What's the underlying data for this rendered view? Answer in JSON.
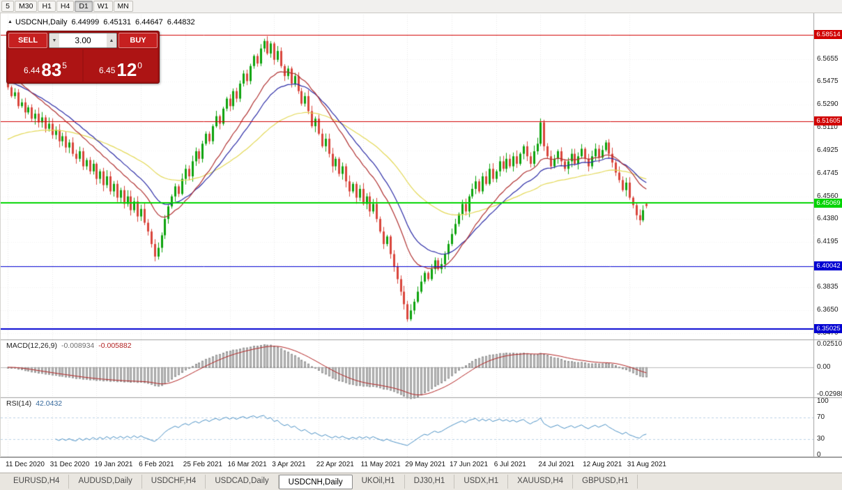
{
  "toolbar": {
    "timeframes": [
      "5",
      "M30",
      "H1",
      "H4",
      "D1",
      "W1",
      "MN"
    ],
    "active": "D1"
  },
  "chart": {
    "symbol": "USDCNH,Daily",
    "open": "6.44999",
    "high": "6.45131",
    "low": "6.44647",
    "close": "6.44832",
    "collapse_icon": "▲",
    "price_axis": {
      "ticks": [
        "6.5655",
        "6.5475",
        "6.5290",
        "6.5110",
        "6.4925",
        "6.4745",
        "6.4560",
        "6.4380",
        "6.4195",
        "6.4015",
        "6.3835",
        "6.3650",
        "6.3470"
      ],
      "max": 6.596,
      "min": 6.343
    },
    "levels": [
      {
        "label": "6.58514",
        "color": "#d10000",
        "width": 1
      },
      {
        "label": "6.51605",
        "color": "#d10000",
        "width": 1
      },
      {
        "label": "6.45069",
        "color": "#00d400",
        "width": 2
      },
      {
        "label": "6.40042",
        "color": "#0000d1",
        "width": 1
      },
      {
        "label": "6.35025",
        "color": "#0000d1",
        "width": 2
      }
    ],
    "dates": [
      {
        "label": "11 Dec 2020",
        "bar": 0
      },
      {
        "label": "31 Dec 2020",
        "bar": 13
      },
      {
        "label": "19 Jan 2021",
        "bar": 26
      },
      {
        "label": "6 Feb 2021",
        "bar": 39
      },
      {
        "label": "25 Feb 2021",
        "bar": 52
      },
      {
        "label": "16 Mar 2021",
        "bar": 65
      },
      {
        "label": "3 Apr 2021",
        "bar": 78
      },
      {
        "label": "22 Apr 2021",
        "bar": 91
      },
      {
        "label": "11 May 2021",
        "bar": 104
      },
      {
        "label": "29 May 2021",
        "bar": 117
      },
      {
        "label": "17 Jun 2021",
        "bar": 130
      },
      {
        "label": "6 Jul 2021",
        "bar": 143
      },
      {
        "label": "24 Jul 2021",
        "bar": 156
      },
      {
        "label": "12 Aug 2021",
        "bar": 169
      },
      {
        "label": "31 Aug 2021",
        "bar": 182
      }
    ],
    "chart_data": {
      "type": "candlestick",
      "first_open": 6.548,
      "closes": [
        6.543,
        6.536,
        6.539,
        6.528,
        6.531,
        6.523,
        6.527,
        6.518,
        6.522,
        6.515,
        6.519,
        6.51,
        6.514,
        6.505,
        6.509,
        6.5,
        6.504,
        6.495,
        6.499,
        6.49,
        6.486,
        6.492,
        6.48,
        6.485,
        6.476,
        6.482,
        6.47,
        6.476,
        6.465,
        6.472,
        6.46,
        6.466,
        6.455,
        6.461,
        6.45,
        6.456,
        6.445,
        6.452,
        6.44,
        6.446,
        6.435,
        6.428,
        6.418,
        6.408,
        6.415,
        6.425,
        6.438,
        6.448,
        6.456,
        6.464,
        6.458,
        6.47,
        6.478,
        6.472,
        6.484,
        6.492,
        6.486,
        6.498,
        6.506,
        6.5,
        6.512,
        6.52,
        6.514,
        6.526,
        6.534,
        6.528,
        6.54,
        6.534,
        6.546,
        6.554,
        6.548,
        6.56,
        6.568,
        6.562,
        6.574,
        6.58,
        6.57,
        6.578,
        6.565,
        6.572,
        6.56,
        6.552,
        6.558,
        6.546,
        6.552,
        6.54,
        6.53,
        6.536,
        6.524,
        6.512,
        6.518,
        6.506,
        6.496,
        6.502,
        6.49,
        6.48,
        6.486,
        6.474,
        6.48,
        6.468,
        6.46,
        6.466,
        6.455,
        6.462,
        6.45,
        6.456,
        6.444,
        6.45,
        6.438,
        6.428,
        6.418,
        6.424,
        6.41,
        6.4,
        6.39,
        6.38,
        6.37,
        6.358,
        6.365,
        6.372,
        6.38,
        6.388,
        6.395,
        6.39,
        6.398,
        6.405,
        6.398,
        6.402,
        6.41,
        6.418,
        6.426,
        6.434,
        6.442,
        6.45,
        6.444,
        6.456,
        6.462,
        6.468,
        6.46,
        6.472,
        6.466,
        6.478,
        6.47,
        6.476,
        6.484,
        6.478,
        6.486,
        6.48,
        6.488,
        6.482,
        6.49,
        6.496,
        6.488,
        6.482,
        6.492,
        6.498,
        6.515,
        6.496,
        6.488,
        6.48,
        6.486,
        6.492,
        6.484,
        6.478,
        6.484,
        6.49,
        6.482,
        6.488,
        6.494,
        6.486,
        6.48,
        6.488,
        6.494,
        6.487,
        6.493,
        6.499,
        6.49,
        6.483,
        6.475,
        6.469,
        6.461,
        6.467,
        6.455,
        6.449,
        6.441,
        6.437,
        6.445,
        6.44832
      ],
      "high_clamp": 6.5851,
      "low_clamp": 6.3515
    },
    "moving_averages": [
      {
        "name": "slow-ma",
        "period": 55,
        "seed": 6.5,
        "color": "#e3d855"
      },
      {
        "name": "medium-ma",
        "period": 24,
        "seed": 6.548,
        "color": "#2b2ba6"
      },
      {
        "name": "fast-ma",
        "period": 16,
        "seed": 6.556,
        "color": "#b03030"
      }
    ],
    "colors": {
      "up": "#0da30d",
      "down": "#d9453b",
      "grid": "#e7e7e7",
      "grid_h": "#f0f0f0",
      "separator": "#9f9f9f",
      "macd_hist": "#c6c6c6",
      "macd_hist_edge": "#969696",
      "macd_signal": "#b22222",
      "rsi_line": "#4a90c4",
      "rsi_level": "#bad0e4"
    }
  },
  "macd": {
    "name": "MACD(12,26,9)",
    "value1": "-0.008934",
    "value2": "-0.005882",
    "fast": 12,
    "slow": 26,
    "signal": 9,
    "axis": [
      "0.02510",
      "0.00",
      "-0.02988"
    ]
  },
  "rsi": {
    "name": "RSI(14)",
    "value": "42.0432",
    "period": 14,
    "axis": [
      "100",
      "70",
      "30",
      "0"
    ],
    "levels": [
      70,
      30
    ]
  },
  "trade_panel": {
    "sell_label": "SELL",
    "buy_label": "BUY",
    "volume": "3.00",
    "spin_down_icon": "▼",
    "spin_up_icon": "▲",
    "sell_price": {
      "prefix": "6.44",
      "main": "83",
      "pip": "5"
    },
    "buy_price": {
      "prefix": "6.45",
      "main": "12",
      "pip": "0"
    }
  },
  "tabs": {
    "items": [
      "EURUSD,H4",
      "AUDUSD,Daily",
      "USDCHF,H4",
      "USDCAD,Daily",
      "USDCNH,Daily",
      "UKOil,H1",
      "DJ30,H1",
      "USDX,H1",
      "XAUUSD,H4",
      "GBPUSD,H1"
    ],
    "active_index": 4
  }
}
